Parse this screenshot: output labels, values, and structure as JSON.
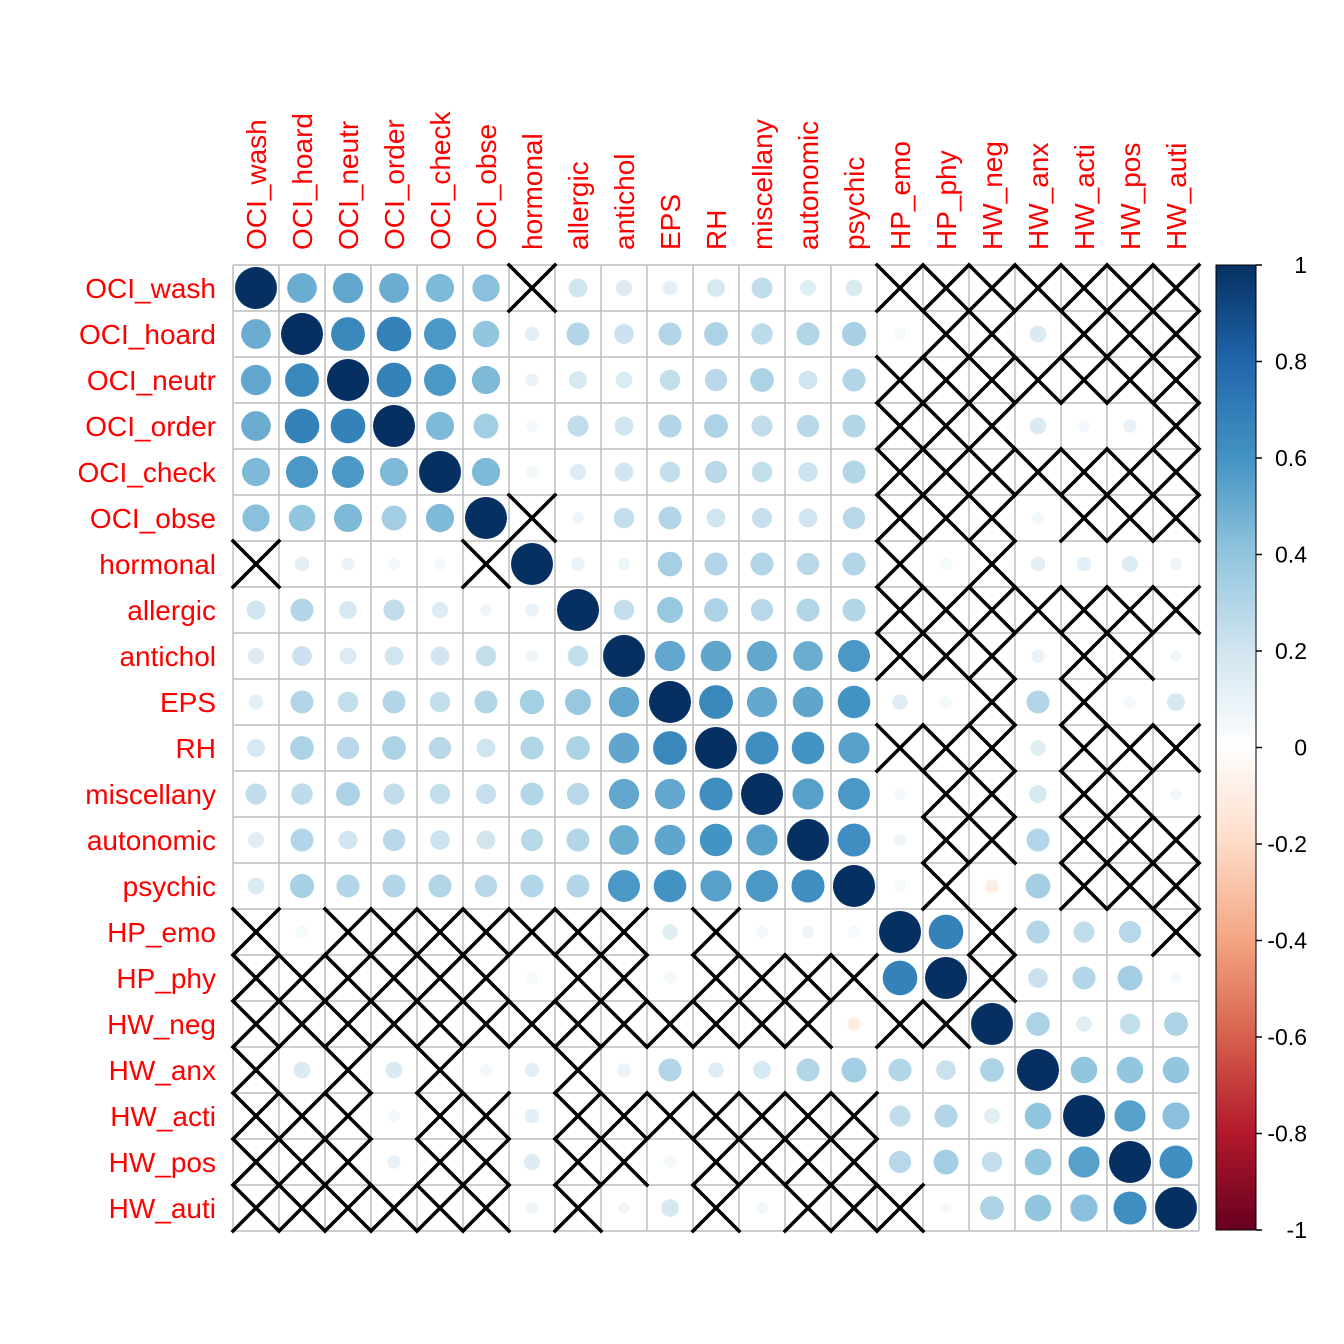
{
  "chart_data": {
    "type": "heatmap",
    "subtype": "correlation-circle-matrix",
    "variables": [
      "OCI_wash",
      "OCI_hoard",
      "OCI_neutr",
      "OCI_order",
      "OCI_check",
      "OCI_obse",
      "hormonal",
      "allergic",
      "antichol",
      "EPS",
      "RH",
      "miscellany",
      "autonomic",
      "psychic",
      "HP_emo",
      "HP_phy",
      "HW_neg",
      "HW_anx",
      "HW_acti",
      "HW_pos",
      "HW_auti"
    ],
    "matrix": [
      [
        1,
        0.5,
        0.52,
        0.5,
        0.45,
        0.42,
        null,
        0.2,
        0.15,
        0.12,
        0.18,
        0.25,
        0.14,
        0.16,
        null,
        null,
        null,
        null,
        null,
        null,
        null
      ],
      [
        0.5,
        1,
        0.65,
        0.68,
        0.58,
        0.4,
        0.12,
        0.3,
        0.22,
        0.3,
        0.32,
        0.26,
        0.3,
        0.33,
        0.05,
        null,
        null,
        0.16,
        null,
        null,
        null
      ],
      [
        0.52,
        0.65,
        1,
        0.68,
        0.58,
        0.45,
        0.1,
        0.18,
        0.16,
        0.24,
        0.28,
        0.32,
        0.2,
        0.3,
        null,
        null,
        null,
        null,
        null,
        null,
        null
      ],
      [
        0.5,
        0.68,
        0.68,
        1,
        0.45,
        0.35,
        0.06,
        0.25,
        0.2,
        0.3,
        0.32,
        0.25,
        0.28,
        0.3,
        null,
        null,
        null,
        0.16,
        0.06,
        0.1,
        null
      ],
      [
        0.45,
        0.58,
        0.58,
        0.45,
        1,
        0.45,
        0.05,
        0.15,
        0.2,
        0.24,
        0.28,
        0.24,
        0.22,
        0.3,
        null,
        null,
        null,
        null,
        null,
        null,
        null
      ],
      [
        0.42,
        0.4,
        0.45,
        0.35,
        0.45,
        1,
        null,
        0.08,
        0.24,
        0.3,
        0.2,
        0.23,
        0.2,
        0.28,
        null,
        null,
        null,
        0.06,
        null,
        null,
        null
      ],
      [
        null,
        0.12,
        0.1,
        0.06,
        0.05,
        null,
        1,
        0.1,
        0.08,
        0.34,
        0.3,
        0.3,
        0.28,
        0.3,
        null,
        0.05,
        null,
        0.12,
        0.12,
        0.15,
        0.08
      ],
      [
        0.2,
        0.3,
        0.18,
        0.25,
        0.15,
        0.08,
        0.1,
        1,
        0.24,
        0.38,
        0.32,
        0.28,
        0.3,
        0.3,
        null,
        null,
        null,
        null,
        null,
        null,
        null
      ],
      [
        0.15,
        0.22,
        0.16,
        0.2,
        0.2,
        0.24,
        0.08,
        0.24,
        1,
        0.52,
        0.53,
        0.52,
        0.5,
        0.58,
        null,
        null,
        null,
        0.1,
        null,
        null,
        0.06
      ],
      [
        0.12,
        0.3,
        0.24,
        0.3,
        0.24,
        0.3,
        0.34,
        0.38,
        0.52,
        1,
        0.65,
        0.52,
        0.53,
        0.6,
        0.14,
        0.05,
        null,
        0.3,
        null,
        0.05,
        0.18
      ],
      [
        0.18,
        0.32,
        0.28,
        0.32,
        0.28,
        0.2,
        0.3,
        0.32,
        0.53,
        0.65,
        1,
        0.62,
        0.6,
        0.55,
        null,
        null,
        null,
        0.14,
        null,
        null,
        null
      ],
      [
        0.25,
        0.26,
        0.32,
        0.25,
        0.24,
        0.23,
        0.3,
        0.28,
        0.52,
        0.52,
        0.62,
        1,
        0.55,
        0.58,
        0.06,
        null,
        null,
        0.18,
        null,
        null,
        0.06
      ],
      [
        0.14,
        0.3,
        0.2,
        0.28,
        0.22,
        0.2,
        0.28,
        0.3,
        0.5,
        0.53,
        0.6,
        0.55,
        1,
        0.62,
        0.08,
        null,
        null,
        0.3,
        null,
        null,
        null
      ],
      [
        0.16,
        0.33,
        0.3,
        0.3,
        0.3,
        0.28,
        0.3,
        0.3,
        0.58,
        0.6,
        0.55,
        0.58,
        0.62,
        1,
        0.05,
        null,
        -0.1,
        0.35,
        null,
        null,
        null
      ],
      [
        null,
        0.05,
        null,
        null,
        null,
        null,
        null,
        null,
        null,
        0.14,
        null,
        0.06,
        0.08,
        0.05,
        1,
        0.68,
        null,
        0.3,
        0.25,
        0.28,
        null
      ],
      [
        null,
        null,
        null,
        null,
        null,
        null,
        0.05,
        null,
        null,
        0.05,
        null,
        null,
        null,
        null,
        0.68,
        1,
        null,
        0.22,
        0.3,
        0.35,
        0.05
      ],
      [
        null,
        null,
        null,
        null,
        null,
        null,
        null,
        null,
        null,
        null,
        null,
        null,
        null,
        -0.1,
        null,
        null,
        1,
        0.32,
        0.14,
        0.24,
        0.32
      ],
      [
        null,
        0.16,
        null,
        0.16,
        null,
        0.06,
        0.12,
        null,
        0.1,
        0.3,
        0.14,
        0.18,
        0.3,
        0.35,
        0.3,
        0.22,
        0.32,
        1,
        0.4,
        0.4,
        0.4
      ],
      [
        null,
        null,
        null,
        0.06,
        null,
        null,
        0.12,
        null,
        null,
        null,
        null,
        null,
        null,
        null,
        0.25,
        0.3,
        0.14,
        0.4,
        1,
        0.55,
        0.42
      ],
      [
        null,
        null,
        null,
        0.1,
        null,
        null,
        0.15,
        null,
        null,
        0.05,
        null,
        null,
        null,
        null,
        0.28,
        0.35,
        0.24,
        0.4,
        0.55,
        1,
        0.62
      ],
      [
        null,
        null,
        null,
        null,
        null,
        null,
        0.08,
        null,
        0.06,
        0.18,
        null,
        0.06,
        null,
        null,
        null,
        0.05,
        0.32,
        0.4,
        0.42,
        0.62,
        1
      ]
    ],
    "colorbar_ticks": [
      "1",
      "0.8",
      "0.6",
      "0.4",
      "0.2",
      "0",
      "-0.2",
      "-0.4",
      "-0.6",
      "-0.8",
      "-1"
    ],
    "color_scale": [
      "#67001F",
      "#B2182B",
      "#D6604D",
      "#F4A582",
      "#FDDBC7",
      "#FFFFFF",
      "#D1E5F0",
      "#92C5DE",
      "#4393C3",
      "#2166AC",
      "#053061"
    ],
    "label_color": "#FF0000",
    "grid": true
  }
}
